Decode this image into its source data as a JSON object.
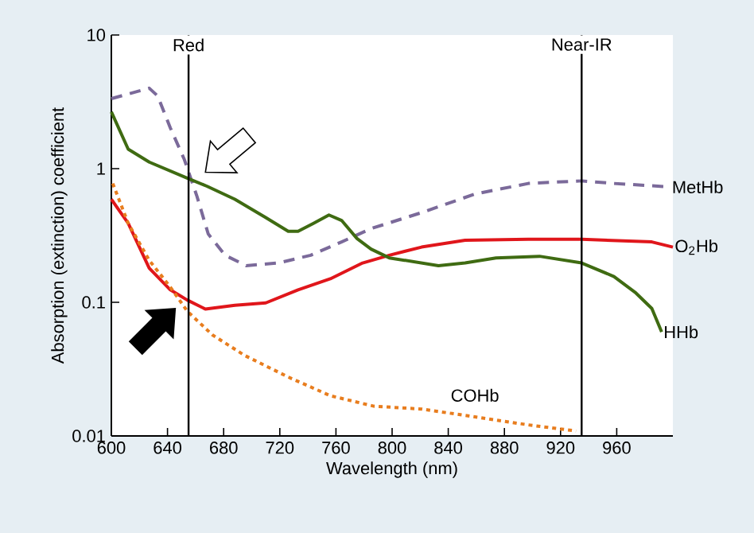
{
  "chart_data": {
    "type": "line",
    "xlabel": "Wavelength (nm)",
    "ylabel": "Absorption (extinction) coefficient",
    "log": "y",
    "xlim": [
      600,
      1000
    ],
    "xticks": [
      600,
      640,
      680,
      720,
      760,
      800,
      840,
      880,
      920,
      960
    ],
    "ylim": [
      0.01,
      10
    ],
    "yticks": [
      0.01,
      0.1,
      1,
      10
    ],
    "grid": false,
    "marker": "none",
    "ref_lines": [
      {
        "axis": "x",
        "value": 655,
        "label": "Red",
        "color": "#000000"
      },
      {
        "axis": "x",
        "value": 935,
        "label": "Near-IR",
        "color": "#000000"
      }
    ],
    "series": [
      {
        "name": "MetHb",
        "color": "#7b6a9a",
        "line_style": "dashed",
        "x": [
          600,
          627,
          633,
          642,
          652,
          661,
          669,
          681,
          696,
          719,
          742,
          764,
          785,
          821,
          859,
          897,
          935,
          958,
          998
        ],
        "values": [
          3.34,
          4.0,
          3.5,
          2.02,
          1.17,
          0.62,
          0.325,
          0.225,
          0.188,
          0.197,
          0.225,
          0.283,
          0.356,
          0.469,
          0.646,
          0.775,
          0.81,
          0.775,
          0.73
        ]
      },
      {
        "name": "O$_{2}$Hb",
        "color": "#e0161b",
        "line_style": "solid",
        "x": [
          600,
          612,
          627,
          642,
          654,
          667,
          688,
          710,
          733,
          756,
          779,
          798,
          821,
          852,
          897,
          935,
          985,
          1000
        ],
        "values": [
          0.59,
          0.39,
          0.18,
          0.124,
          0.104,
          0.089,
          0.095,
          0.099,
          0.124,
          0.15,
          0.197,
          0.225,
          0.259,
          0.291,
          0.296,
          0.296,
          0.283,
          0.259
        ]
      },
      {
        "name": "HHb",
        "color": "#3f6b12",
        "line_style": "solid",
        "x": [
          600,
          612,
          627,
          654,
          668,
          688,
          710,
          726,
          733,
          744,
          755,
          764,
          775,
          785,
          798,
          833,
          852,
          874,
          905,
          935,
          958,
          973,
          985,
          992
        ],
        "values": [
          2.66,
          1.4,
          1.12,
          0.85,
          0.74,
          0.59,
          0.43,
          0.34,
          0.34,
          0.39,
          0.45,
          0.41,
          0.3,
          0.25,
          0.215,
          0.188,
          0.197,
          0.215,
          0.221,
          0.197,
          0.156,
          0.119,
          0.09,
          0.06
        ]
      },
      {
        "name": "COHb",
        "color": "#e87d1e",
        "line_style": "dotted",
        "x": [
          601,
          612,
          627,
          642,
          654,
          672,
          695,
          726,
          756,
          787,
          821,
          859,
          897,
          931
        ],
        "values": [
          0.775,
          0.39,
          0.206,
          0.13,
          0.086,
          0.057,
          0.04,
          0.0276,
          0.02,
          0.0167,
          0.0159,
          0.0139,
          0.0121,
          0.0109
        ]
      }
    ]
  }
}
